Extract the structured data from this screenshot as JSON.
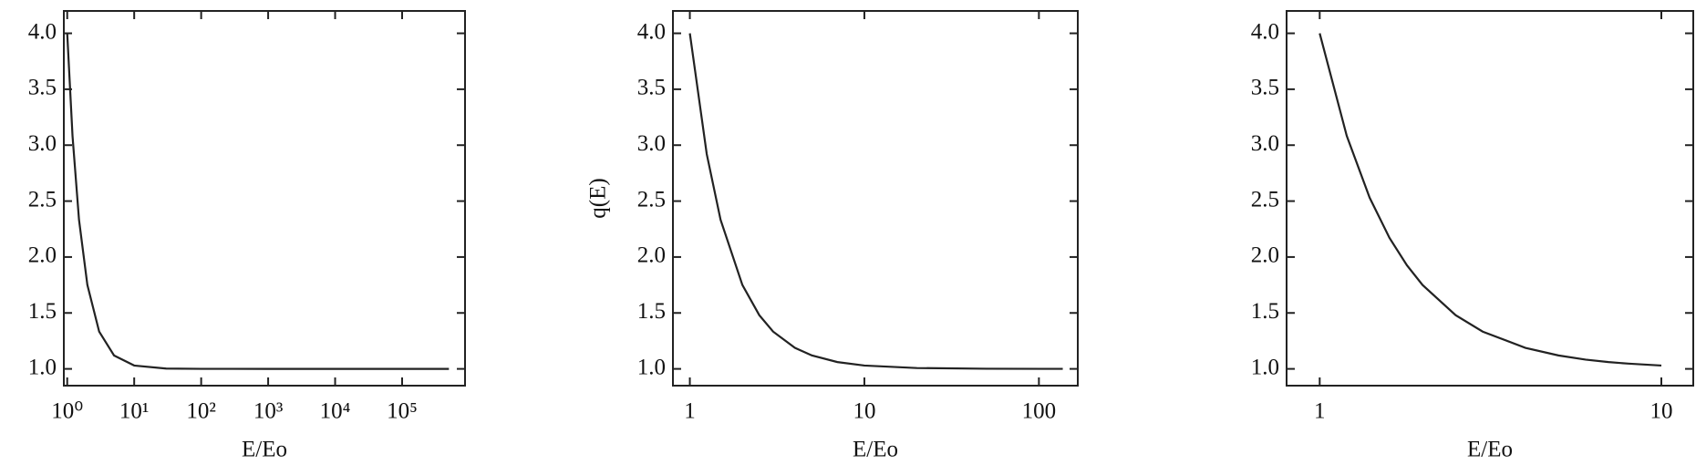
{
  "chart_data": [
    {
      "type": "line",
      "xlabel": "E/Eo",
      "xscale": "log",
      "xlim": [
        0.89,
        870000
      ],
      "ylim": [
        0.85,
        4.2
      ],
      "xticks": [
        {
          "value": 1,
          "label": "10⁰"
        },
        {
          "value": 10,
          "label": "10¹"
        },
        {
          "value": 100,
          "label": "10²"
        },
        {
          "value": 1000,
          "label": "10³"
        },
        {
          "value": 10000,
          "label": "10⁴"
        },
        {
          "value": 100000,
          "label": "10⁵"
        }
      ],
      "yticks": [
        {
          "value": 1,
          "label": "1.0"
        },
        {
          "value": 1.5,
          "label": "1.5"
        },
        {
          "value": 2,
          "label": "2.0"
        },
        {
          "value": 2.5,
          "label": "2.5"
        },
        {
          "value": 3,
          "label": "3.0"
        },
        {
          "value": 3.5,
          "label": "3.5"
        },
        {
          "value": 4,
          "label": "4.0"
        }
      ],
      "series": [
        {
          "color": "#222222",
          "x": [
            1,
            1.2,
            1.5,
            2,
            3,
            5,
            10,
            30,
            100,
            1000,
            10000,
            100000,
            500000
          ],
          "values": [
            4,
            3.083,
            2.333,
            1.75,
            1.333,
            1.12,
            1.03,
            1.003,
            1.0003,
            1,
            1,
            1,
            1
          ]
        }
      ]
    },
    {
      "type": "line",
      "xlabel": "E/Eo",
      "ylabel": "q(E)",
      "xscale": "log",
      "xlim": [
        0.8,
        167
      ],
      "ylim": [
        0.85,
        4.2
      ],
      "xticks": [
        1,
        10,
        100
      ],
      "yticks": [
        {
          "value": 1,
          "label": "1.0"
        },
        {
          "value": 1.5,
          "label": "1.5"
        },
        {
          "value": 2,
          "label": "2.0"
        },
        {
          "value": 2.5,
          "label": "2.5"
        },
        {
          "value": 3,
          "label": "3.0"
        },
        {
          "value": 3.5,
          "label": "3.5"
        },
        {
          "value": 4,
          "label": "4.0"
        }
      ],
      "series": [
        {
          "color": "#222222",
          "x": [
            1,
            1.25,
            1.5,
            2,
            2.5,
            3,
            4,
            5,
            7,
            10,
            20,
            50,
            137
          ],
          "values": [
            4,
            2.92,
            2.333,
            1.75,
            1.48,
            1.333,
            1.188,
            1.12,
            1.061,
            1.03,
            1.0075,
            1.0012,
            1.0002
          ]
        }
      ]
    },
    {
      "type": "line",
      "xlabel": "E/Eo",
      "xscale": "log",
      "xlim": [
        0.8,
        12.4
      ],
      "ylim": [
        0.85,
        4.2
      ],
      "xticks": [
        1,
        10
      ],
      "yticks": [
        {
          "value": 1,
          "label": "1.0"
        },
        {
          "value": 1.5,
          "label": "1.5"
        },
        {
          "value": 2,
          "label": "2.0"
        },
        {
          "value": 2.5,
          "label": "2.5"
        },
        {
          "value": 3,
          "label": "3.0"
        },
        {
          "value": 3.5,
          "label": "3.5"
        },
        {
          "value": 4,
          "label": "4.0"
        }
      ],
      "series": [
        {
          "color": "#222222",
          "x": [
            1,
            1.2,
            1.4,
            1.6,
            1.8,
            2,
            2.5,
            3,
            4,
            5,
            6,
            7,
            8,
            10
          ],
          "values": [
            4,
            3.083,
            2.531,
            2.172,
            1.926,
            1.75,
            1.48,
            1.333,
            1.188,
            1.12,
            1.083,
            1.061,
            1.047,
            1.03
          ]
        }
      ]
    }
  ]
}
